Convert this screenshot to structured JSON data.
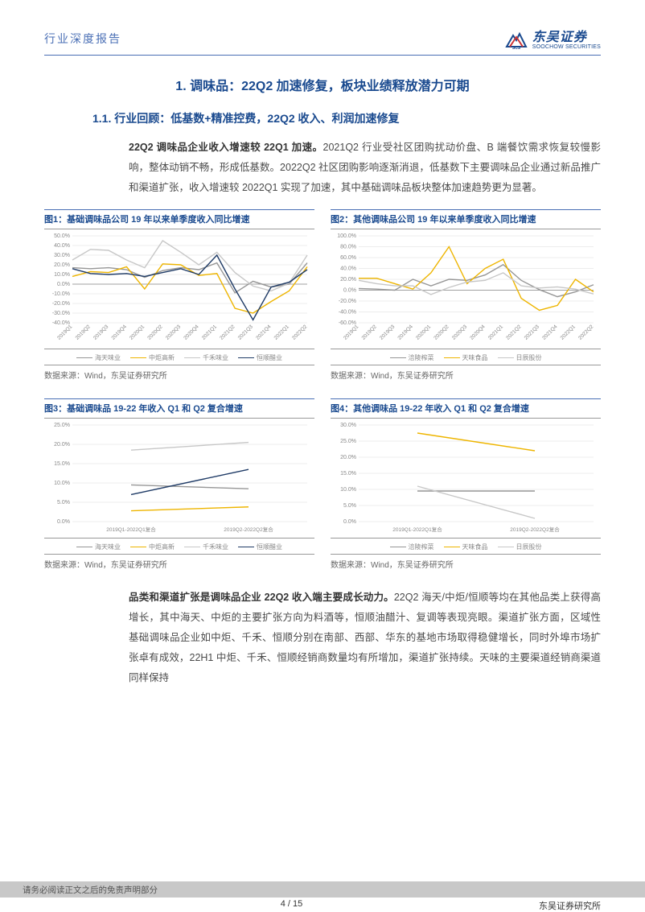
{
  "header": {
    "report_type": "行业深度报告",
    "logo_cn": "东吴证券",
    "logo_en": "SOOCHOW SECURITIES",
    "logo_blue": "#1a4a8f",
    "logo_red": "#cc3333"
  },
  "headings": {
    "h1": "1. 调味品：22Q2 加速修复，板块业绩释放潜力可期",
    "h2": "1.1. 行业回顾：低基数+精准控费，22Q2 收入、利润加速修复"
  },
  "para1_bold": "22Q2 调味品企业收入增速较 22Q1 加速。",
  "para1_rest": "2021Q2 行业受社区团购扰动价盘、B 端餐饮需求恢复较慢影响，整体动销不畅，形成低基数。2022Q2 社区团购影响逐渐消退，低基数下主要调味品企业通过新品推广和渠道扩张，收入增速较 2022Q1 实现了加速，其中基础调味品板块整体加速趋势更为显著。",
  "para2_bold": "品类和渠道扩张是调味品企业 22Q2 收入端主要成长动力。",
  "para2_rest": "22Q2 海天/中炬/恒顺等均在其他品类上获得高增长，其中海天、中炬的主要扩张方向为料酒等，恒顺油醋汁、复调等表现亮眼。渠道扩张方面，区域性基础调味品企业如中炬、千禾、恒顺分别在南部、西部、华东的基地市场取得稳健增长，同时外埠市场扩张卓有成效，22H1 中炬、千禾、恒顺经销商数量均有所增加，渠道扩张持续。天味的主要渠道经销商渠道同样保持",
  "source": "数据来源：Wind，东吴证券研究所",
  "footer": {
    "disclaimer": "请务必阅读正文之后的免责声明部分",
    "page": "4 / 15",
    "org": "东吴证券研究所"
  },
  "colors": {
    "brand_blue": "#1a4a8f",
    "rule_blue": "#4a6fb5",
    "text_body": "#4a4a4a",
    "gridline": "#d9d9d9",
    "axis": "#888888",
    "series_haitian": "#969696",
    "series_zhongju": "#eeb500",
    "series_qianhe": "#c7c7c7",
    "series_hengshun": "#1f3b66",
    "series_fuling": "#969696",
    "series_tianwei": "#eeb500",
    "series_richen": "#c7c7c7"
  },
  "chart1": {
    "title": "图1：基础调味品公司 19 年以来单季度收入同比增速",
    "type": "line",
    "xlabels": [
      "2019Q1",
      "2019Q2",
      "2019Q3",
      "2019Q4",
      "2020Q1",
      "2020Q2",
      "2020Q3",
      "2020Q4",
      "2021Q1",
      "2021Q2",
      "2021Q3",
      "2021Q4",
      "2022Q1",
      "2022Q2"
    ],
    "ymin": -40,
    "ymax": 50,
    "ytick_step": 10,
    "yticks": [
      "50.0%",
      "40.0%",
      "30.0%",
      "20.0%",
      "10.0%",
      "0.0%",
      "-10.0%",
      "-20.0%",
      "-30.0%",
      "-40.0%"
    ],
    "legend": [
      "海天味业",
      "中炬高新",
      "千禾味业",
      "恒顺醋业"
    ],
    "legend_colors": [
      "#969696",
      "#eeb500",
      "#c7c7c7",
      "#1f3b66"
    ],
    "series": {
      "海天味业": {
        "color": "#969696",
        "values": [
          17,
          16,
          17,
          15,
          7,
          14,
          17,
          15,
          22,
          -9,
          3,
          -3,
          0,
          22
        ]
      },
      "中炬高新": {
        "color": "#eeb500",
        "values": [
          8,
          13,
          12,
          18,
          -5,
          21,
          20,
          9,
          11,
          -25,
          -30,
          -18,
          -7,
          18
        ]
      },
      "千禾味业": {
        "color": "#c7c7c7",
        "values": [
          25,
          36,
          35,
          25,
          17,
          45,
          33,
          20,
          33,
          12,
          -2,
          -7,
          1,
          30
        ]
      },
      "恒顺醋业": {
        "color": "#1f3b66",
        "values": [
          16,
          11,
          10,
          11,
          8,
          12,
          16,
          10,
          30,
          -5,
          -37,
          -3,
          2,
          15
        ]
      }
    }
  },
  "chart2": {
    "title": "图2：其他调味品公司 19 年以来单季度收入同比增速",
    "type": "line",
    "xlabels": [
      "2019Q1",
      "2019Q2",
      "2019Q3",
      "2019Q4",
      "2020Q1",
      "2020Q2",
      "2020Q3",
      "2020Q4",
      "2021Q1",
      "2021Q2",
      "2021Q3",
      "2021Q4",
      "2022Q1",
      "2022Q2"
    ],
    "ymin": -60,
    "ymax": 100,
    "ytick_step": 20,
    "yticks": [
      "100.0%",
      "80.0%",
      "60.0%",
      "40.0%",
      "20.0%",
      "0.0%",
      "-20.0%",
      "-40.0%",
      "-60.0%"
    ],
    "legend": [
      "涪陵榨菜",
      "天味食品",
      "日辰股份"
    ],
    "legend_colors": [
      "#969696",
      "#eeb500",
      "#c7c7c7"
    ],
    "series": {
      "涪陵榨菜": {
        "color": "#969696",
        "values": [
          3,
          2,
          0,
          20,
          8,
          20,
          18,
          28,
          47,
          18,
          1,
          -12,
          -3,
          10
        ]
      },
      "天味食品": {
        "color": "#eeb500",
        "values": [
          22,
          22,
          12,
          2,
          32,
          80,
          12,
          40,
          57,
          -15,
          -37,
          -28,
          20,
          -3
        ]
      },
      "日辰股份": {
        "color": "#c7c7c7",
        "values": [
          18,
          12,
          8,
          8,
          -8,
          5,
          15,
          18,
          32,
          8,
          4,
          6,
          2,
          -7
        ]
      }
    }
  },
  "chart3": {
    "title": "图3：基础调味品 19-22 年收入 Q1 和 Q2 复合增速",
    "type": "line",
    "xlabels": [
      "2019Q1-2022Q1复合",
      "2019Q2-2022Q2复合"
    ],
    "ymin": 0,
    "ymax": 25,
    "ytick_step": 5,
    "yticks": [
      "25.0%",
      "20.0%",
      "15.0%",
      "10.0%",
      "5.0%",
      "0.0%"
    ],
    "legend": [
      "海天味业",
      "中炬高新",
      "千禾味业",
      "恒顺醋业"
    ],
    "legend_colors": [
      "#969696",
      "#eeb500",
      "#c7c7c7",
      "#1f3b66"
    ],
    "series": {
      "海天味业": {
        "color": "#969696",
        "values": [
          9.5,
          8.5
        ]
      },
      "中炬高新": {
        "color": "#eeb500",
        "values": [
          2.8,
          3.8
        ]
      },
      "千禾味业": {
        "color": "#c7c7c7",
        "values": [
          18.5,
          20.5
        ]
      },
      "恒顺醋业": {
        "color": "#1f3b66",
        "values": [
          7.0,
          13.5
        ]
      }
    }
  },
  "chart4": {
    "title": "图4：其他调味品 19-22 年收入 Q1 和 Q2 复合增速",
    "type": "line",
    "xlabels": [
      "2019Q1-2022Q1复合",
      "2019Q2-2022Q2复合"
    ],
    "ymin": 0,
    "ymax": 30,
    "ytick_step": 5,
    "yticks": [
      "30.0%",
      "25.0%",
      "20.0%",
      "15.0%",
      "10.0%",
      "5.0%",
      "0.0%"
    ],
    "legend": [
      "涪陵榨菜",
      "天味食品",
      "日辰股份"
    ],
    "legend_colors": [
      "#969696",
      "#eeb500",
      "#c7c7c7"
    ],
    "series": {
      "涪陵榨菜": {
        "color": "#969696",
        "values": [
          9.5,
          9.5
        ]
      },
      "天味食品": {
        "color": "#eeb500",
        "values": [
          27.5,
          22.0
        ]
      },
      "日辰股份": {
        "color": "#c7c7c7",
        "values": [
          11.0,
          1.0
        ]
      }
    }
  }
}
